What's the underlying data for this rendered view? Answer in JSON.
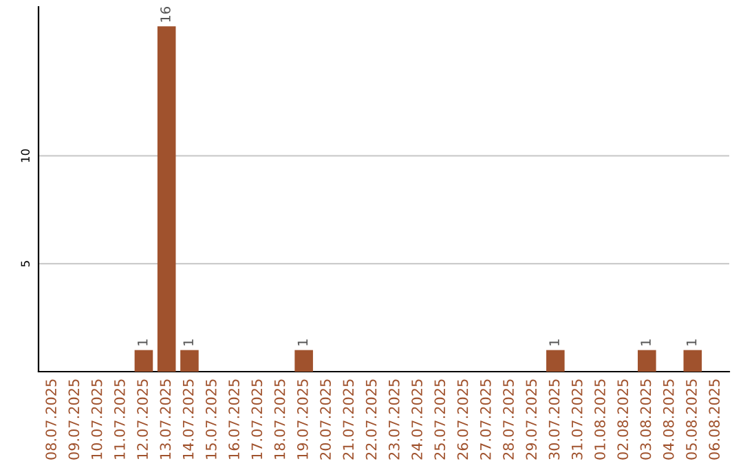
{
  "chart_data": {
    "type": "bar",
    "categories": [
      "08.07.2025",
      "09.07.2025",
      "10.07.2025",
      "11.07.2025",
      "12.07.2025",
      "13.07.2025",
      "14.07.2025",
      "15.07.2025",
      "16.07.2025",
      "17.07.2025",
      "18.07.2025",
      "19.07.2025",
      "20.07.2025",
      "21.07.2025",
      "22.07.2025",
      "23.07.2025",
      "24.07.2025",
      "25.07.2025",
      "26.07.2025",
      "27.07.2025",
      "28.07.2025",
      "29.07.2025",
      "30.07.2025",
      "31.07.2025",
      "01.08.2025",
      "02.08.2025",
      "03.08.2025",
      "04.08.2025",
      "05.08.2025",
      "06.08.2025"
    ],
    "values": [
      0,
      0,
      0,
      0,
      1,
      16,
      1,
      0,
      0,
      0,
      0,
      1,
      0,
      0,
      0,
      0,
      0,
      0,
      0,
      0,
      0,
      0,
      1,
      0,
      0,
      0,
      1,
      0,
      1,
      0
    ],
    "value_labels": [
      null,
      null,
      null,
      null,
      "1",
      "16",
      "1",
      null,
      null,
      null,
      null,
      "1",
      null,
      null,
      null,
      null,
      null,
      null,
      null,
      null,
      null,
      null,
      "1",
      null,
      null,
      null,
      "1",
      null,
      "1",
      null
    ],
    "color": "#a0522d",
    "ylim": [
      0,
      16.9
    ],
    "yticks": [
      5,
      10
    ],
    "grid": "y"
  }
}
